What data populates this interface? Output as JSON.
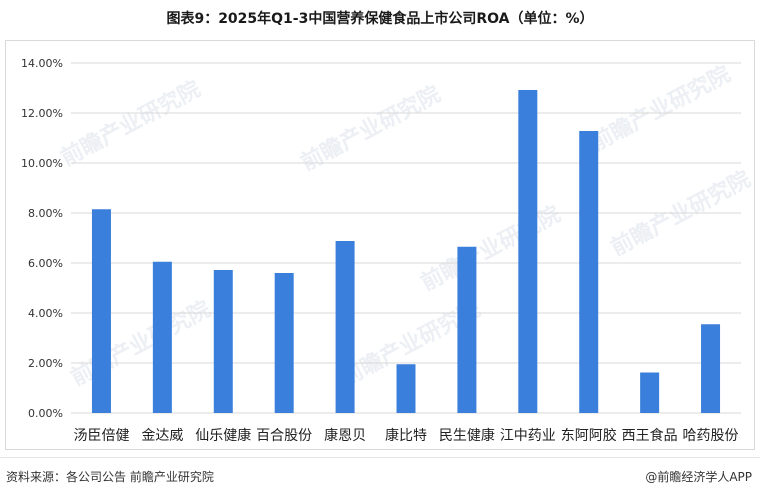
{
  "header": {
    "title": "图表9：2025年Q1-3中国营养保健食品上市公司ROA（单位：%）"
  },
  "footer": {
    "source": "资料来源：各公司公告 前瞻产业研究院",
    "brand": "@前瞻经济学人APP"
  },
  "watermark": {
    "text": "前瞻产业研究院"
  },
  "colors": {
    "bar": "#3a7fdc",
    "grid": "#d9d9d9",
    "axis_text": "#333333"
  },
  "chart_data": {
    "type": "bar",
    "title": "图表9：2025年Q1-3中国营养保健食品上市公司ROA（单位：%）",
    "xlabel": "",
    "ylabel": "",
    "categories": [
      "汤臣倍健",
      "金达威",
      "仙乐健康",
      "百合股份",
      "康恩贝",
      "康比特",
      "民生健康",
      "江中药业",
      "东阿阿胶",
      "西王食品",
      "哈药股份"
    ],
    "values": [
      8.15,
      6.05,
      5.72,
      5.6,
      6.88,
      1.95,
      6.65,
      12.92,
      11.28,
      1.62,
      3.55
    ],
    "ylim": [
      0,
      14
    ],
    "yticks": [
      0,
      2,
      4,
      6,
      8,
      10,
      12,
      14
    ],
    "ytick_labels": [
      "0.00%",
      "2.00%",
      "4.00%",
      "6.00%",
      "8.00%",
      "10.00%",
      "12.00%",
      "14.00%"
    ],
    "grid": true,
    "legend": "none"
  }
}
